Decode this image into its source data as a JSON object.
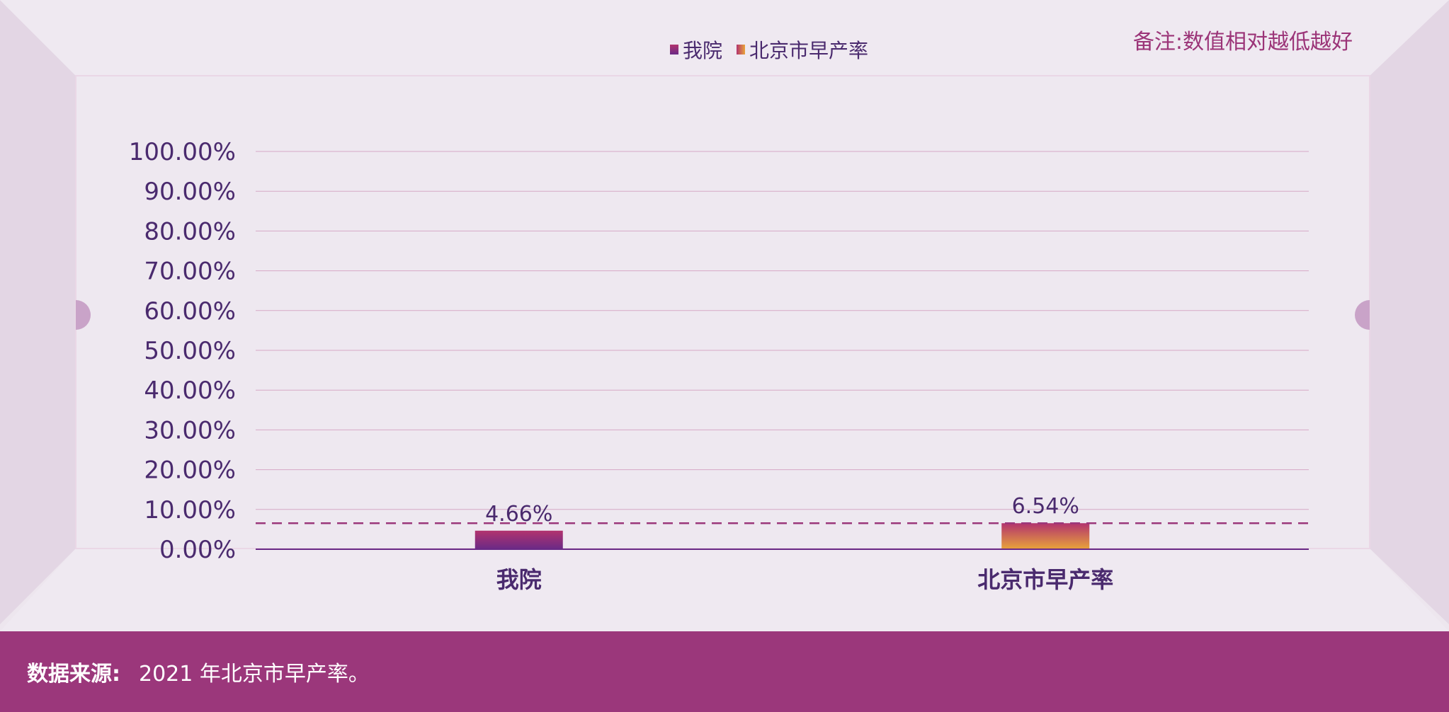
{
  "legend": [
    {
      "label": "我院",
      "color": "#7a2a84"
    },
    {
      "label": "北京市早产率",
      "color": "#e9a43a"
    }
  ],
  "note": "备注:数值相对越低越好",
  "footer": {
    "label": "数据来源:",
    "text": "2021 年北京市早产率。"
  },
  "colors": {
    "accent": "#9b377b",
    "text": "#4a2a6e",
    "background": "#ede6ee"
  },
  "chart_data": {
    "type": "bar",
    "categories": [
      "我院",
      "北京市早产率"
    ],
    "values": [
      4.66,
      6.54
    ],
    "value_labels": [
      "4.66%",
      "6.54%"
    ],
    "ylim": [
      0,
      100
    ],
    "yticks": [
      "0.00%",
      "10.00%",
      "20.00%",
      "30.00%",
      "40.00%",
      "50.00%",
      "60.00%",
      "70.00%",
      "80.00%",
      "90.00%",
      "100.00%"
    ],
    "reference_line": 6.54,
    "grid": true,
    "legend_position": "top-center"
  }
}
